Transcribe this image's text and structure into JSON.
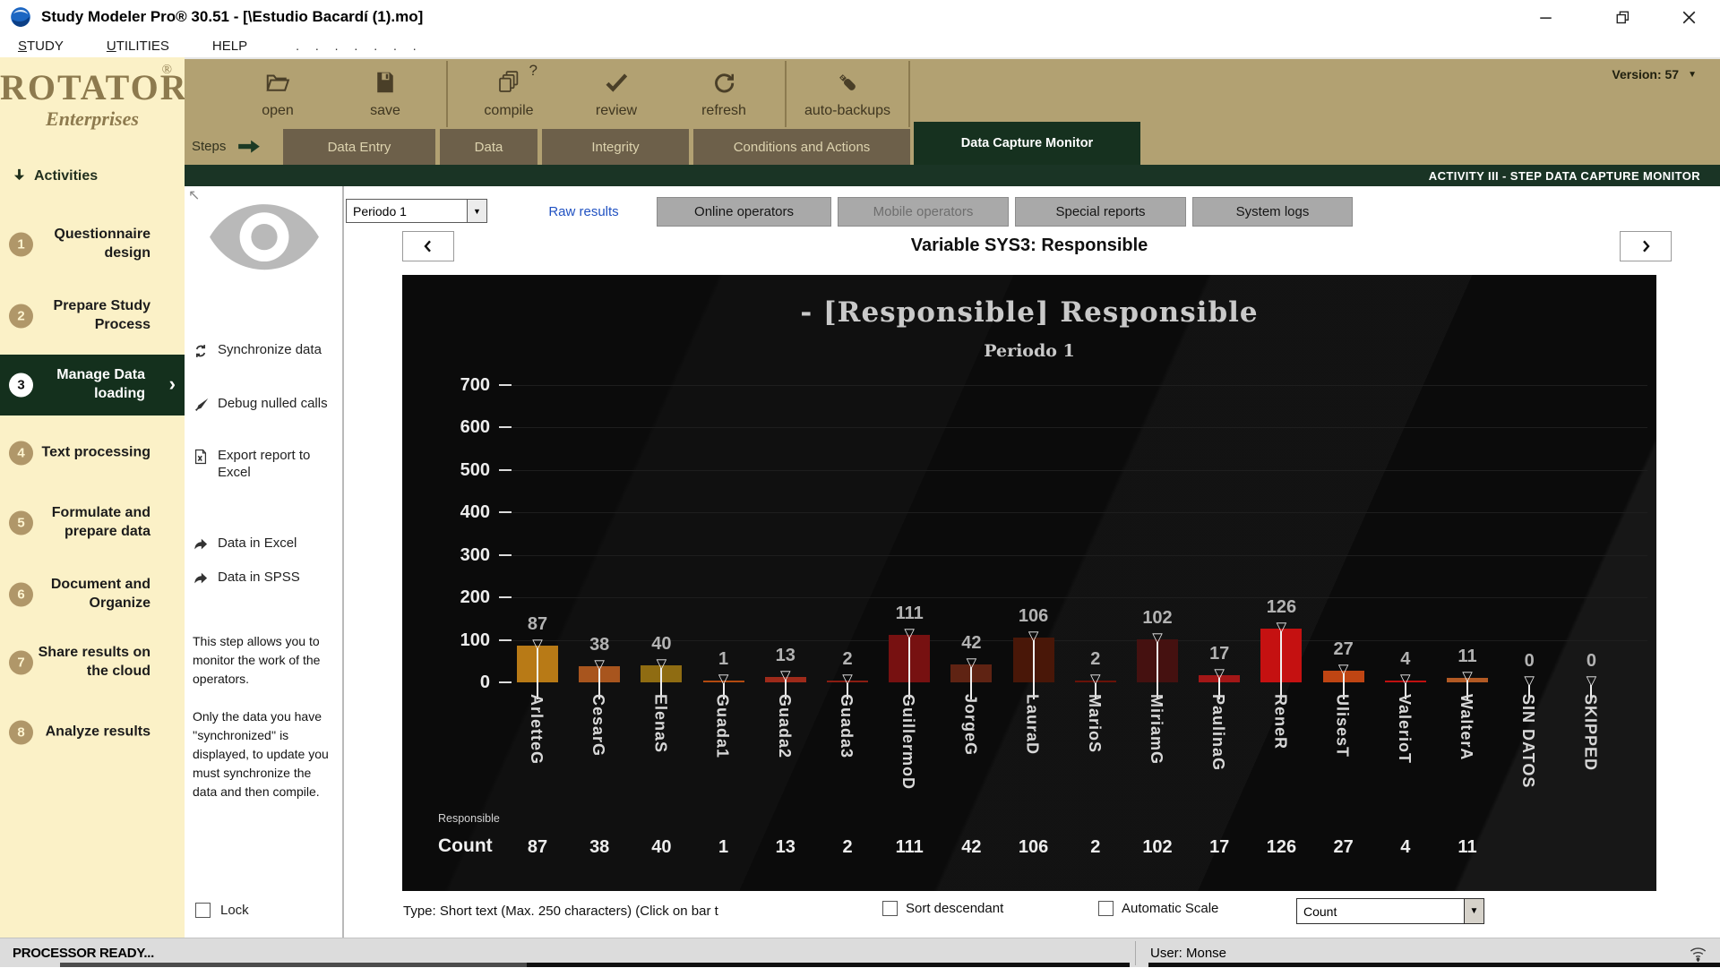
{
  "window": {
    "app_icon": "globe-icon",
    "title": "Study Modeler Pro® 30.51 - [\\Estudio Bacardí (1).mo]",
    "menu_items": [
      {
        "label": "STUDY",
        "accel": true
      },
      {
        "label": "UTILITIES",
        "accel": true
      },
      {
        "label": "HELP",
        "accel": false
      }
    ],
    "menu_trailing_dots": ". . . . . . .",
    "controls": [
      "minimize",
      "restore",
      "close"
    ]
  },
  "brand": {
    "name": "ROTATOR",
    "registered_mark": "®",
    "tagline": "Enterprises"
  },
  "toolbar": {
    "version_label": "Version: 57",
    "groups": [
      [
        {
          "label": "open",
          "icon": "folder-open-icon"
        },
        {
          "label": "save",
          "icon": "save-icon"
        }
      ],
      [
        {
          "label": "compile",
          "icon": "compile-pages-icon",
          "badge": "?"
        },
        {
          "label": "review",
          "icon": "review-check-icon"
        },
        {
          "label": "refresh",
          "icon": "refresh-icon"
        }
      ],
      [
        {
          "label": "auto-backups",
          "icon": "usb-drive-icon"
        }
      ]
    ]
  },
  "steps_bar": {
    "label": "Steps",
    "tabs": [
      {
        "label": "Data Entry",
        "active": false
      },
      {
        "label": "Data",
        "active": false
      },
      {
        "label": "Integrity",
        "active": false
      },
      {
        "label": "Conditions and Actions",
        "active": false
      },
      {
        "label": "Data Capture Monitor",
        "active": true
      }
    ],
    "activity_banner": "ACTIVITY III - STEP DATA CAPTURE MONITOR"
  },
  "sidebar": {
    "header": "Activities",
    "items": [
      {
        "num": "1",
        "label": "Questionnaire design",
        "active": false
      },
      {
        "num": "2",
        "label": "Prepare Study Process",
        "active": false
      },
      {
        "num": "3",
        "label": "Manage Data loading",
        "active": true
      },
      {
        "num": "4",
        "label": "Text processing",
        "active": false
      },
      {
        "num": "5",
        "label": "Formulate and prepare data",
        "active": false
      },
      {
        "num": "6",
        "label": "Document and Organize",
        "active": false
      },
      {
        "num": "7",
        "label": "Share results on the cloud",
        "active": false
      },
      {
        "num": "8",
        "label": "Analyze results",
        "active": false
      }
    ]
  },
  "tools_panel": {
    "corner_icon": "arrow-up-left-icon",
    "watermark_icon": "eye-icon",
    "actions": [
      {
        "label": "Synchronize data",
        "icon": "sync-icon"
      },
      {
        "label": "Debug nulled calls",
        "icon": "debug-brush-icon"
      },
      {
        "label": "Export report to Excel",
        "icon": "excel-file-icon"
      },
      {
        "label": "Data in Excel",
        "icon": "share-arrow-icon"
      },
      {
        "label": "Data in SPSS",
        "icon": "share-arrow-icon"
      }
    ],
    "note_paragraphs": [
      "This step allows you to monitor the work of the operators.",
      "Only the data you have ''synchronized'' is displayed, to update you must synchronize the data and then compile."
    ],
    "lock_checkbox": {
      "label": "Lock",
      "checked": false
    }
  },
  "monitor": {
    "period_select": {
      "value": "Periodo 1"
    },
    "tabs": [
      {
        "label": "Raw results",
        "active": true,
        "disabled": false
      },
      {
        "label": "Online operators",
        "active": false,
        "disabled": false
      },
      {
        "label": "Mobile operators",
        "active": false,
        "disabled": true
      },
      {
        "label": "Special reports",
        "active": false,
        "disabled": false
      },
      {
        "label": "System logs",
        "active": false,
        "disabled": false
      }
    ],
    "variable_title": "Variable SYS3: Responsible",
    "footer": {
      "type_text": "Type: Short text (Max. 250 characters) (Click on bar t",
      "checkboxes": [
        {
          "label": "Sort descendant",
          "checked": false
        },
        {
          "label": "Automatic Scale",
          "checked": false
        }
      ],
      "measure_select": {
        "value": "Count"
      }
    }
  },
  "chart_data": {
    "type": "bar",
    "title": "- [Responsible] Responsible",
    "subtitle": "Periodo 1",
    "categories": [
      "ArletteG",
      "CesarG",
      "ElenaS",
      "Guada1",
      "Guada2",
      "Guada3",
      "GuillermoD",
      "JorgeG",
      "LauraD",
      "MarioS",
      "MiriamG",
      "PaulinaG",
      "ReneR",
      "UlisesT",
      "ValerioT",
      "WalterA",
      "SIN DATOS",
      "SKIPPED"
    ],
    "values": [
      87,
      38,
      40,
      1,
      13,
      2,
      111,
      42,
      106,
      2,
      102,
      17,
      126,
      27,
      4,
      11,
      0,
      0
    ],
    "bar_colors": [
      "#b87a16",
      "#a8551e",
      "#8f6c12",
      "#b34a10",
      "#9e2a1a",
      "#8a1d12",
      "#771111",
      "#5f2313",
      "#491708",
      "#6a1208",
      "#451110",
      "#a31717",
      "#c51111",
      "#bf4513",
      "#c01010",
      "#b25a24",
      "#000000",
      "#000000"
    ],
    "ylim": [
      0,
      700
    ],
    "yticks": [
      0,
      100,
      200,
      300,
      400,
      500,
      600,
      700
    ],
    "grid": true,
    "legend": "none",
    "series_label": "Responsible",
    "count_row": {
      "label": "Count",
      "values": [
        "87",
        "38",
        "40",
        "1",
        "13",
        "2",
        "111",
        "42",
        "106",
        "2",
        "102",
        "17",
        "126",
        "27",
        "4",
        "11",
        "",
        ""
      ]
    }
  },
  "status_bar": {
    "left_text": "PROCESSOR READY...",
    "user_text": "User: Monse",
    "wifi_icon": "wifi-icon"
  }
}
